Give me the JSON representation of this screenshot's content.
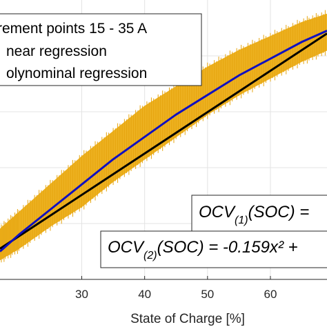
{
  "chart_data": {
    "type": "scatter",
    "title": "",
    "xlabel": "State of Charge [%]",
    "ylabel": "",
    "xlim": [
      17,
      69
    ],
    "ylim": [
      0,
      1
    ],
    "grid": true,
    "x_ticks": [
      "30",
      "40",
      "50",
      "60"
    ],
    "x_tick_values": [
      30,
      40,
      50,
      60
    ],
    "legend": {
      "placement": "top-left",
      "entries": [
        {
          "label": "rement points 15 - 35 A",
          "color": "#edb120",
          "marker": "square"
        },
        {
          "label": "near regression",
          "color": "#000000",
          "marker": "line"
        },
        {
          "label": "olynominal regression",
          "color": "#0000ff",
          "marker": "line"
        }
      ]
    },
    "series": [
      {
        "name": "rement points 15 - 35 A",
        "kind": "band",
        "color": "#edb120",
        "x": [
          17,
          20,
          25,
          30,
          35,
          40,
          45,
          50,
          55,
          60,
          65,
          69
        ],
        "upper": [
          0.18,
          0.24,
          0.34,
          0.44,
          0.53,
          0.62,
          0.69,
          0.76,
          0.82,
          0.87,
          0.92,
          0.95
        ],
        "lower": [
          0.07,
          0.11,
          0.19,
          0.26,
          0.35,
          0.43,
          0.51,
          0.59,
          0.66,
          0.72,
          0.78,
          0.82
        ]
      },
      {
        "name": "near regression",
        "kind": "line",
        "color": "#000000",
        "x": [
          17,
          69
        ],
        "y": [
          0.11,
          0.88
        ]
      },
      {
        "name": "olynominal regression",
        "kind": "line",
        "color": "#1010c0",
        "x": [
          17,
          20,
          25,
          30,
          35,
          40,
          45,
          50,
          55,
          60,
          65,
          69
        ],
        "y": [
          0.1,
          0.16,
          0.25,
          0.34,
          0.43,
          0.51,
          0.59,
          0.66,
          0.73,
          0.79,
          0.85,
          0.89
        ]
      }
    ],
    "annotations": [
      {
        "base": "OCV",
        "sub": "(1)",
        "rest": "(SOC) ="
      },
      {
        "base": "OCV",
        "sub": "(2)",
        "rest": "(SOC) = -0.159x² +"
      }
    ]
  }
}
